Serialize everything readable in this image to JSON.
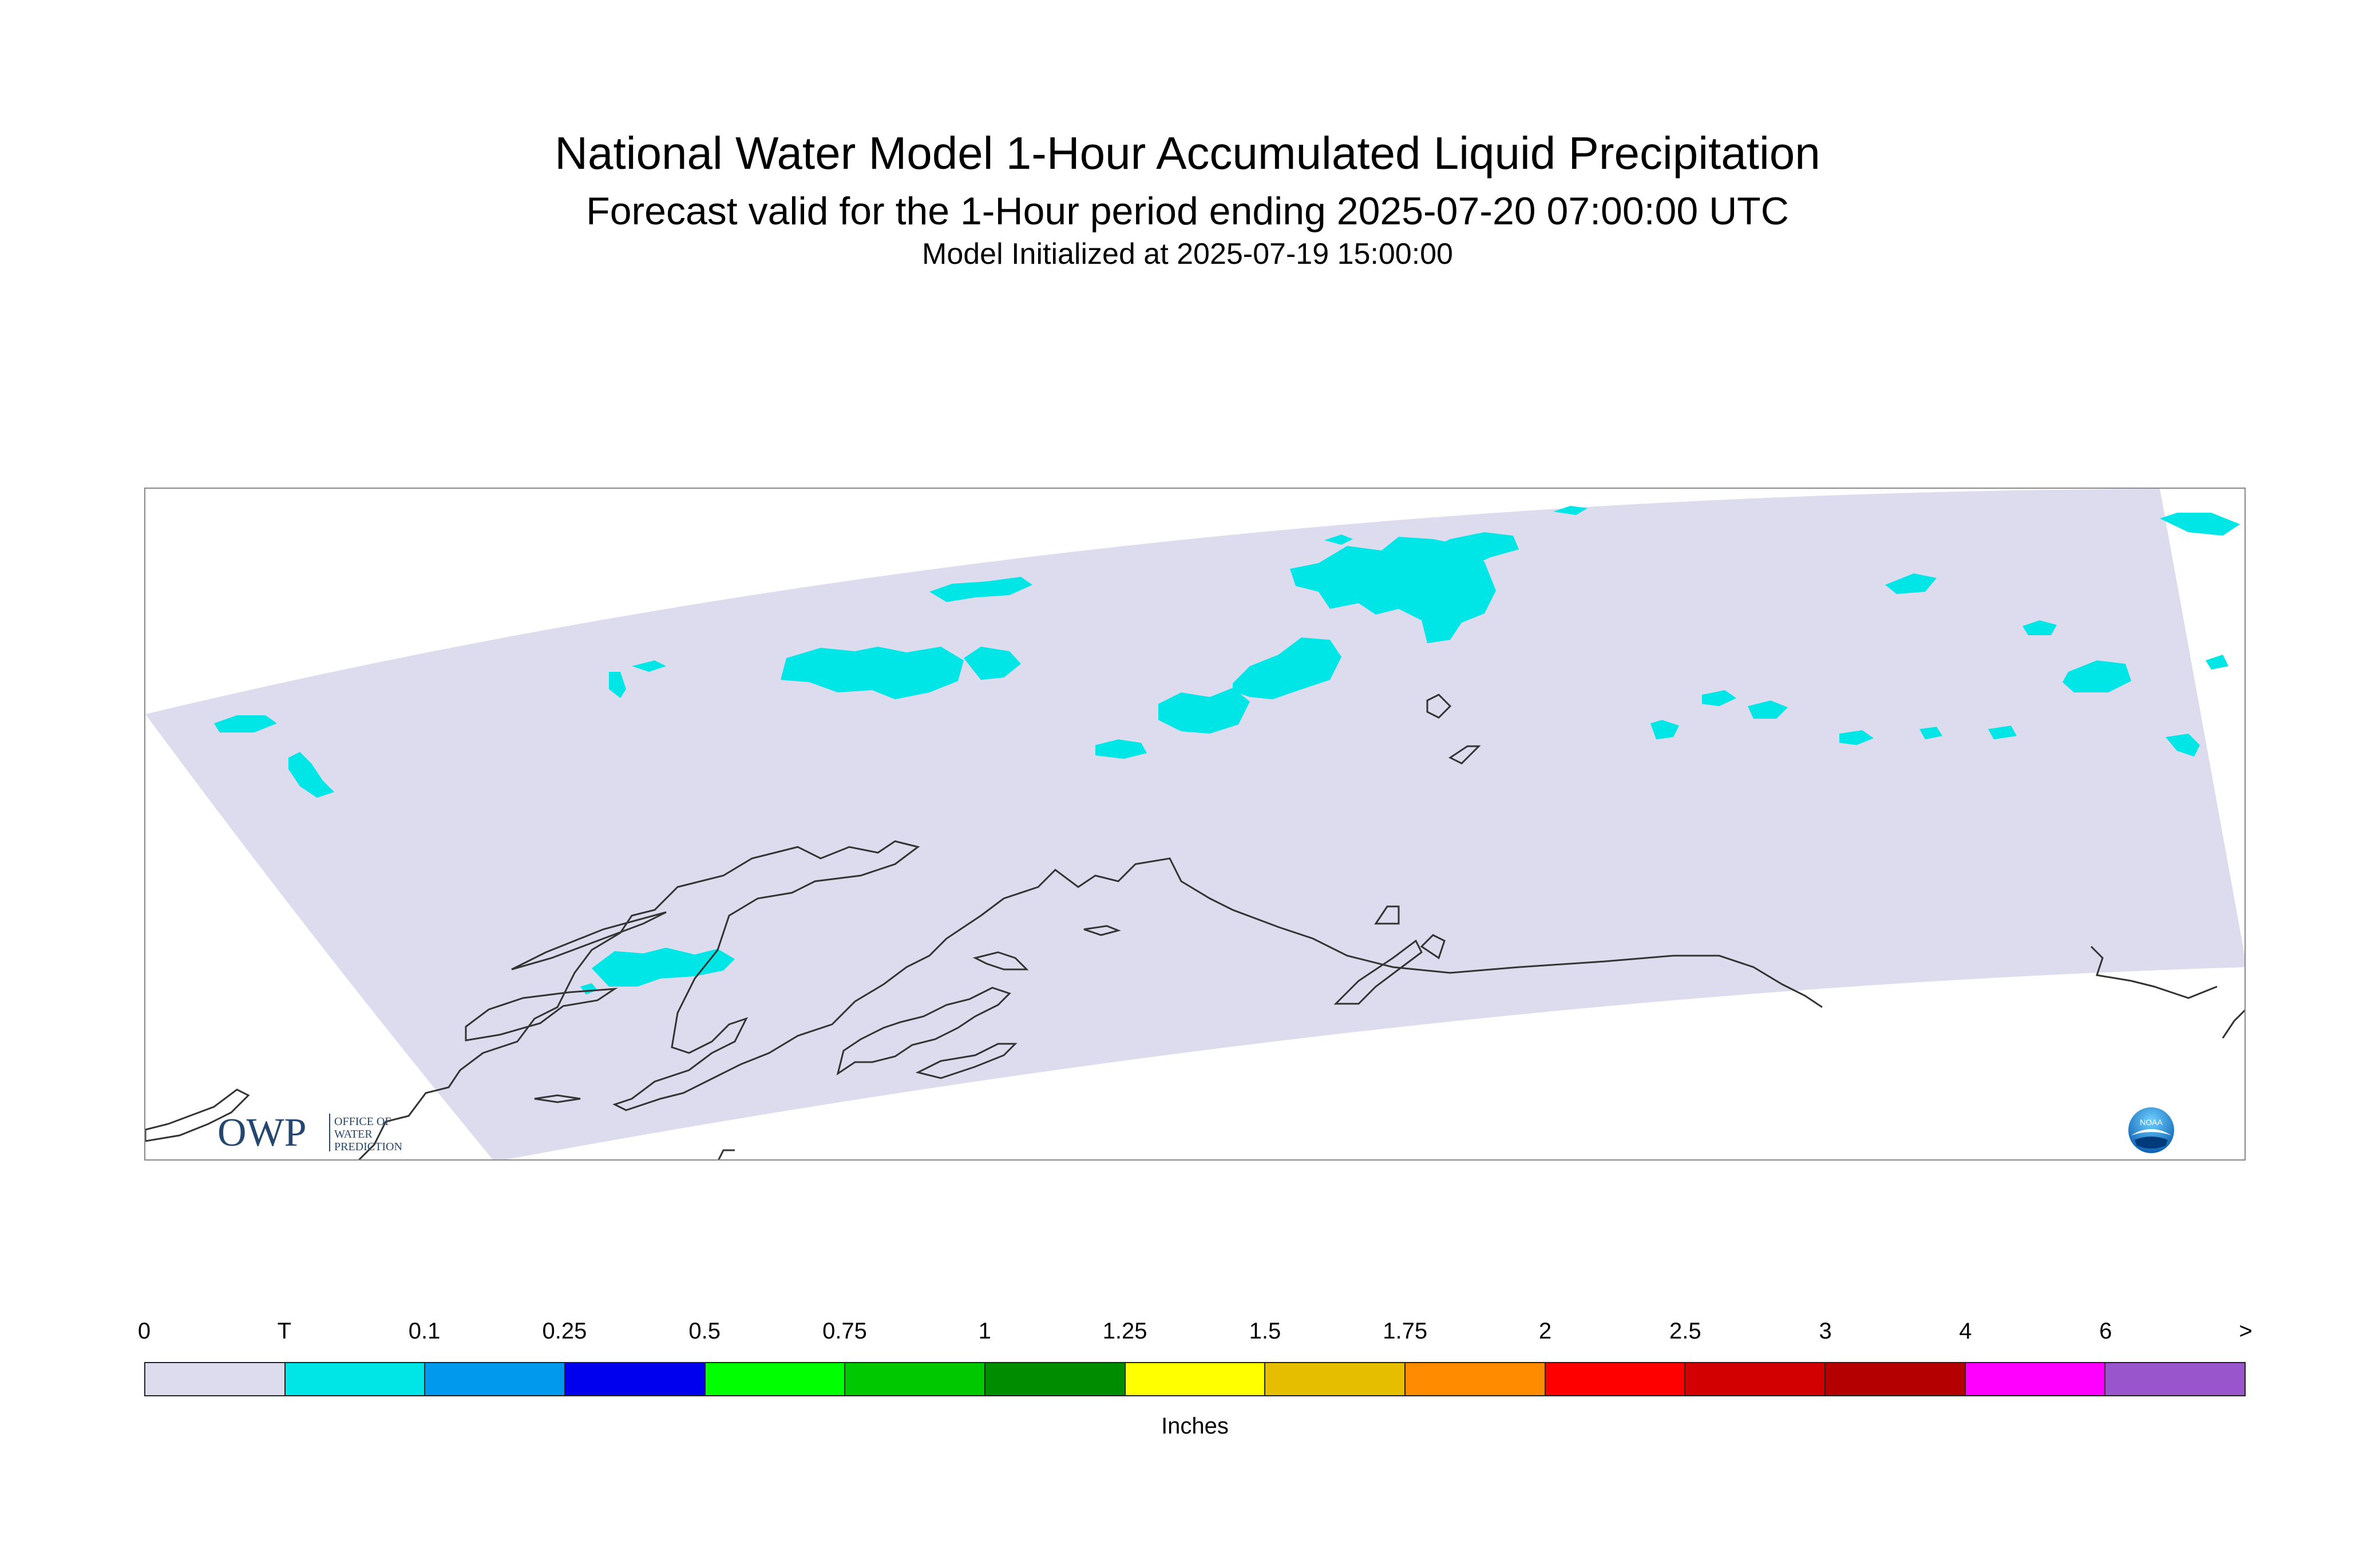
{
  "header": {
    "title": "National Water Model 1-Hour Accumulated Liquid Precipitation",
    "subtitle": "Forecast valid for the 1-Hour period ending 2025-07-20 07:00:00 UTC",
    "init": "Model Initialized at 2025-07-19 15:00:00"
  },
  "map": {
    "domain_fill": "#dcdcee",
    "precip_color": "#00e6e6",
    "coast_color": "#333333"
  },
  "logos": {
    "owp_mark": "OWP",
    "owp_text": [
      "OFFICE OF",
      "WATER",
      "PREDICTION"
    ],
    "noaa": "NOAA"
  },
  "legend": {
    "ticks": [
      "0",
      "T",
      "0.1",
      "0.25",
      "0.5",
      "0.75",
      "1",
      "1.25",
      "1.5",
      "1.75",
      "2",
      "2.5",
      "3",
      "4",
      "6",
      ">"
    ],
    "colors": [
      "#dcdcee",
      "#00e6e6",
      "#0099ee",
      "#0000ee",
      "#00ff00",
      "#00c800",
      "#008c00",
      "#ffff00",
      "#e6be00",
      "#ff8c00",
      "#ff0000",
      "#d20000",
      "#b40000",
      "#ff00ff",
      "#9955cc"
    ],
    "units": "Inches"
  }
}
